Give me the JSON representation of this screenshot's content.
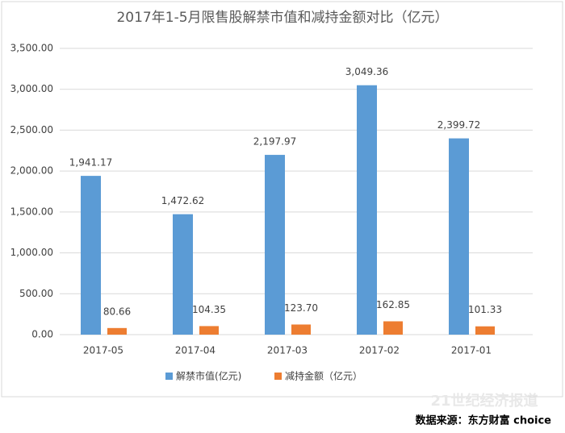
{
  "chart_data": {
    "type": "bar",
    "title": "2017年1-5月限售股解禁市值和减持金额对比（亿元）",
    "categories": [
      "2017-05",
      "2017-04",
      "2017-03",
      "2017-02",
      "2017-01"
    ],
    "series": [
      {
        "name": "解禁市值(亿元)",
        "color": "#5b9bd5",
        "values": [
          1941.17,
          1472.62,
          2197.97,
          3049.36,
          2399.72
        ],
        "value_labels": [
          "1,941.17",
          "1,472.62",
          "2,197.97",
          "3,049.36",
          "2,399.72"
        ]
      },
      {
        "name": "减持金额（亿元）",
        "color": "#ed7d31",
        "values": [
          80.66,
          104.35,
          123.7,
          162.85,
          101.33
        ],
        "value_labels": [
          "80.66",
          "104.35",
          "123.70",
          "162.85",
          "101.33"
        ]
      }
    ],
    "ylim": [
      0,
      3500
    ],
    "yticks": [
      {
        "value": 0,
        "label": "0.00"
      },
      {
        "value": 500,
        "label": "500.00"
      },
      {
        "value": 1000,
        "label": "1,000.00"
      },
      {
        "value": 1500,
        "label": "1,500.00"
      },
      {
        "value": 2000,
        "label": "2,000.00"
      },
      {
        "value": 2500,
        "label": "2,500.00"
      },
      {
        "value": 3000,
        "label": "3,000.00"
      },
      {
        "value": 3500,
        "label": "3,500.00"
      }
    ],
    "grid": true,
    "legend": "bottom",
    "watermark": "21世纪经济报道",
    "source": "数据来源：东方财富 choice"
  }
}
